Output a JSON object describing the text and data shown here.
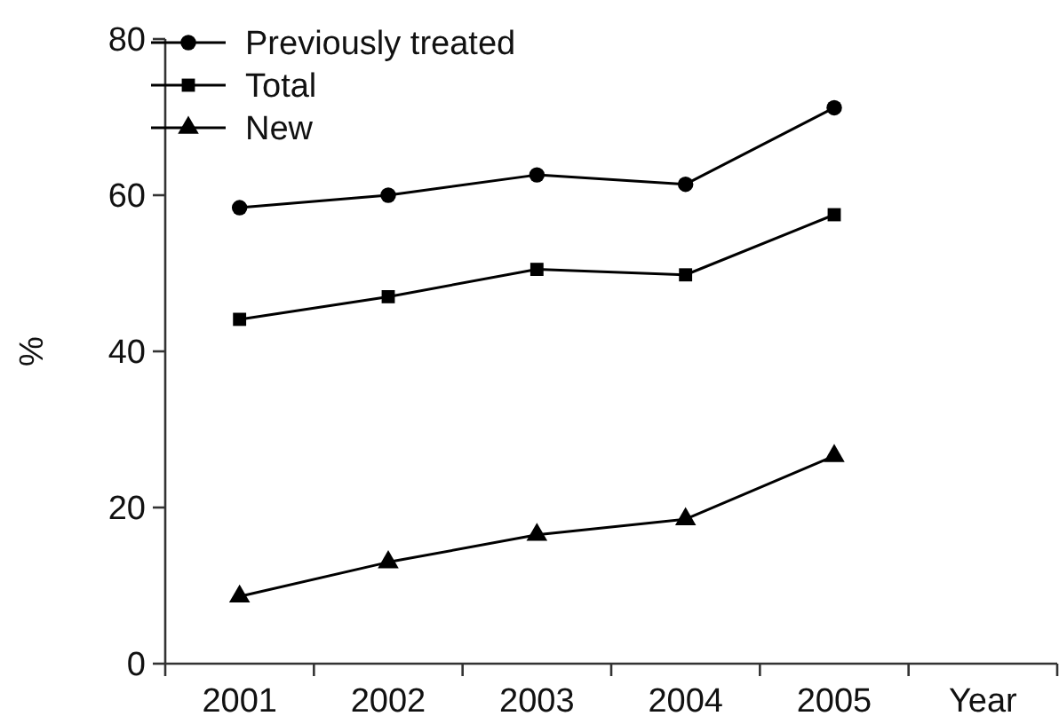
{
  "chart_data": {
    "type": "line",
    "categories": [
      "2001",
      "2002",
      "2003",
      "2004",
      "2005"
    ],
    "xlabel": "Year",
    "ylabel": "%",
    "ylim": [
      0,
      80
    ],
    "yticks": [
      0,
      20,
      40,
      60,
      80
    ],
    "legend": "top left",
    "grid": false,
    "series": [
      {
        "name": "Previously treated",
        "color": "#000000",
        "marker": "circle",
        "values": [
          58.4,
          60.0,
          62.6,
          61.4,
          71.2
        ]
      },
      {
        "name": "Total",
        "color": "#000000",
        "marker": "square",
        "values": [
          44.1,
          47.0,
          50.5,
          49.8,
          57.5
        ]
      },
      {
        "name": "New",
        "color": "#000000",
        "marker": "triangle",
        "values": [
          8.6,
          13.0,
          16.5,
          18.5,
          26.6
        ]
      }
    ]
  }
}
